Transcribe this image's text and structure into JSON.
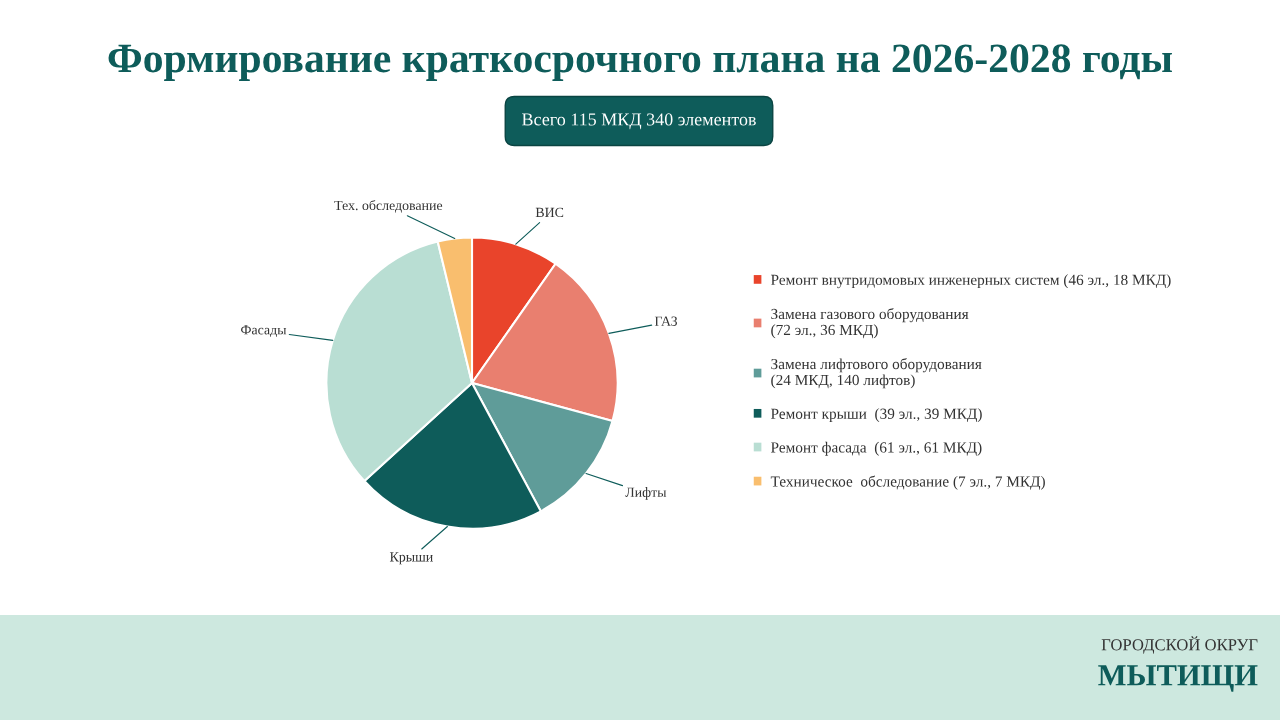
{
  "chart_data": {
    "type": "pie",
    "title": "Формирование краткосрочного плана на 2026-2028 годы",
    "subtitle": "Всего 115 МКД 340 элементов",
    "categories": [
      "Ремонт внутридомовых инженерных систем (46 эл., 18 МКД)",
      "Замена газового оборудования\n(72 эл., 36 МКД)",
      "Замена лифтового оборудования\n(24 МКД, 140 лифтов)",
      "Ремонт крыши  (39 эл., 39 МКД)",
      "Ремонт фасада  (61 эл., 61 МКД)",
      "Техническое  обследование (7 эл., 7 МКД)"
    ],
    "values": [
      18,
      36,
      24,
      39,
      61,
      7
    ],
    "colors": [
      "#e9442b",
      "#e97f6f",
      "#5f9c99",
      "#0e5c5a",
      "#b9ded3",
      "#f9be6e"
    ],
    "legend": "right",
    "annotations": [
      {
        "text": "ВИС",
        "x": "Ремонт внутридомовых инженерных систем (46 эл., 18 МКД)"
      },
      {
        "text": "ГАЗ",
        "x": "Замена газового оборудования\n(72 эл., 36 МКД)"
      },
      {
        "text": "Лифты",
        "x": "Замена лифтового оборудования\n(24 МКД, 140 лифтов)"
      },
      {
        "text": "Крыши",
        "x": "Ремонт крыши  (39 эл., 39 МКД)"
      },
      {
        "text": "Фасады",
        "x": "Ремонт фасада  (61 эл., 61 МКД)"
      },
      {
        "text": "Тех. обследование",
        "x": "Техническое  обследование (7 эл., 7 МКД)"
      },
      "ГОРОДСКОЙ ОКРУГ\nМЫТИЩИ"
    ]
  }
}
